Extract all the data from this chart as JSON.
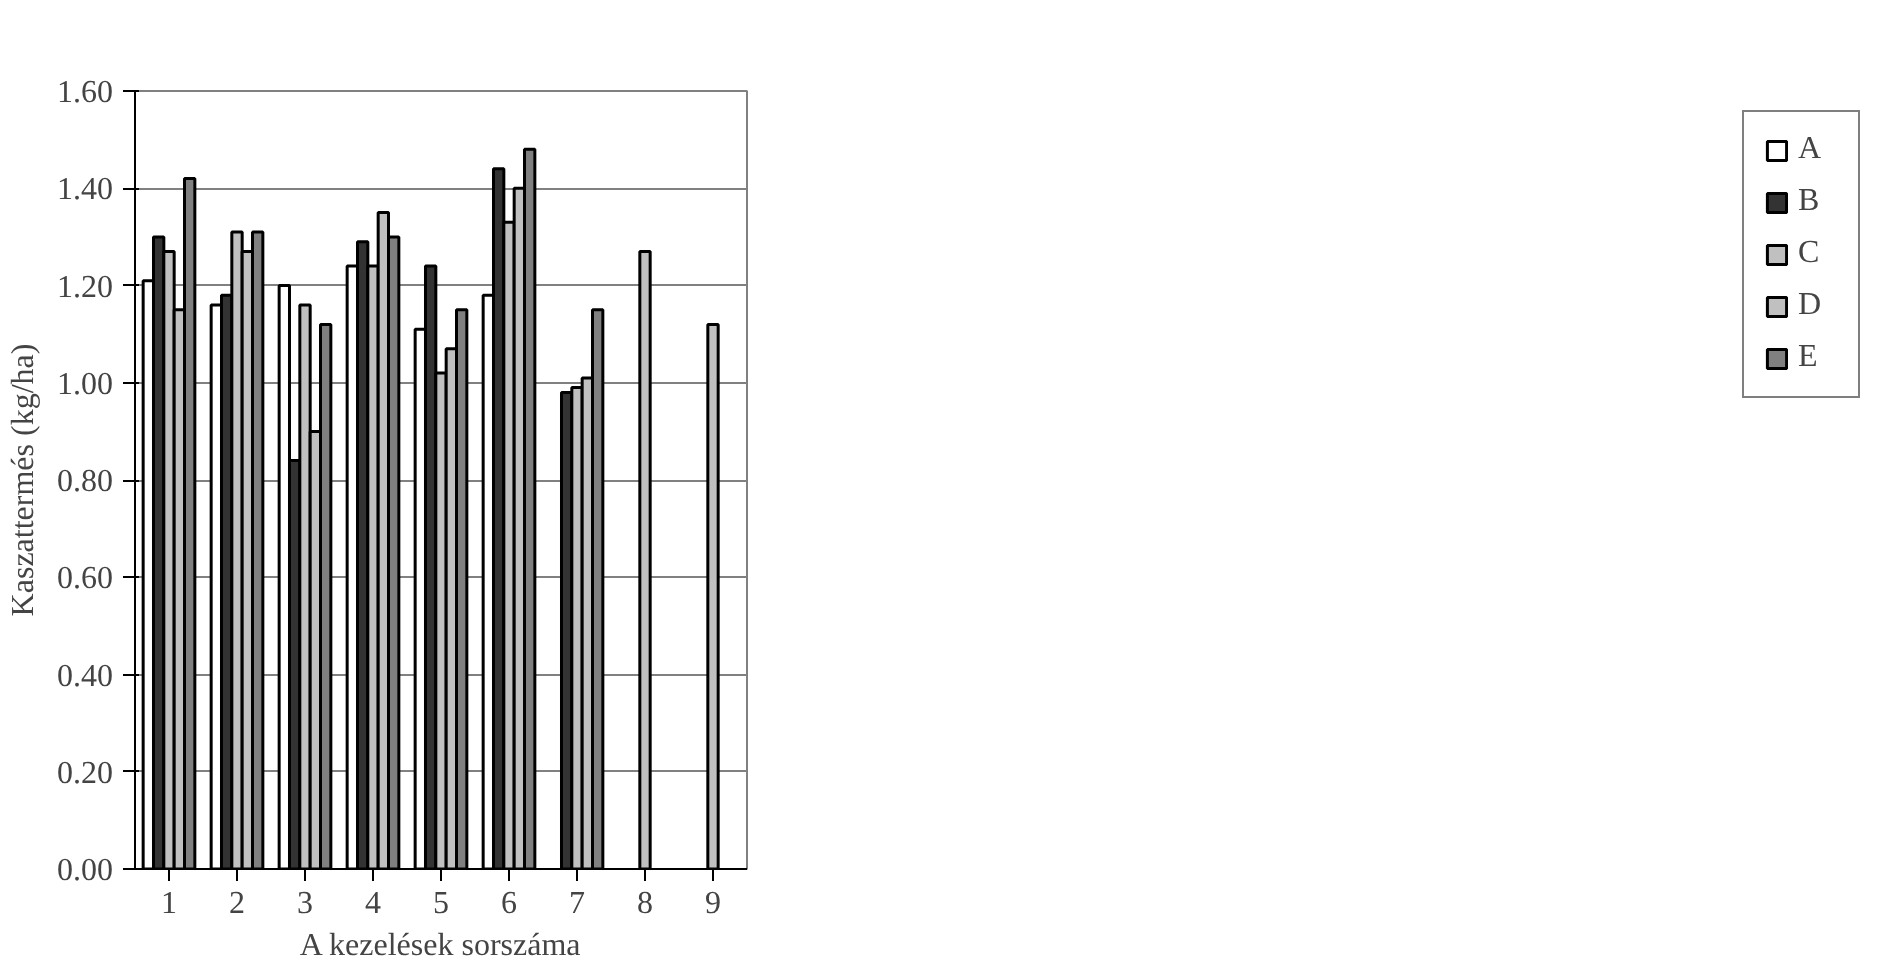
{
  "chart_data": {
    "type": "bar",
    "xlabel": "A kezelések sorszáma",
    "ylabel": "Kaszattermés (kg/ha)",
    "categories": [
      "1",
      "2",
      "3",
      "4",
      "5",
      "6",
      "7",
      "8",
      "9"
    ],
    "series": [
      {
        "name": "A",
        "color": "#ffffff",
        "values": [
          1.21,
          1.16,
          1.2,
          1.24,
          1.11,
          1.18,
          null,
          null,
          null
        ]
      },
      {
        "name": "B",
        "color": "#333333",
        "values": [
          1.3,
          1.18,
          0.84,
          1.29,
          1.24,
          1.44,
          0.98,
          null,
          null
        ]
      },
      {
        "name": "C",
        "color": "#c0c0c0",
        "values": [
          1.27,
          1.31,
          1.16,
          1.24,
          1.02,
          1.33,
          0.99,
          1.27,
          1.12
        ]
      },
      {
        "name": "D",
        "color": "#c0c0c0",
        "values": [
          1.15,
          1.27,
          0.9,
          1.35,
          1.07,
          1.4,
          1.01,
          null,
          null
        ]
      },
      {
        "name": "E",
        "color": "#808080",
        "values": [
          1.42,
          1.31,
          1.12,
          1.3,
          1.15,
          1.48,
          1.15,
          null,
          null
        ]
      }
    ],
    "ylim": [
      0,
      1.6
    ],
    "yticks": [
      {
        "value": 0,
        "label": "0.00"
      },
      {
        "value": 0.2,
        "label": "0.20"
      },
      {
        "value": 0.4,
        "label": "0.40"
      },
      {
        "value": 0.6,
        "label": "0.60"
      },
      {
        "value": 0.8,
        "label": "0.80"
      },
      {
        "value": 1.0,
        "label": "1.00"
      },
      {
        "value": 1.2,
        "label": "1.20"
      },
      {
        "value": 1.4,
        "label": "1.40"
      },
      {
        "value": 1.6,
        "label": "1.60"
      }
    ],
    "grid": "y",
    "legend": "right"
  }
}
